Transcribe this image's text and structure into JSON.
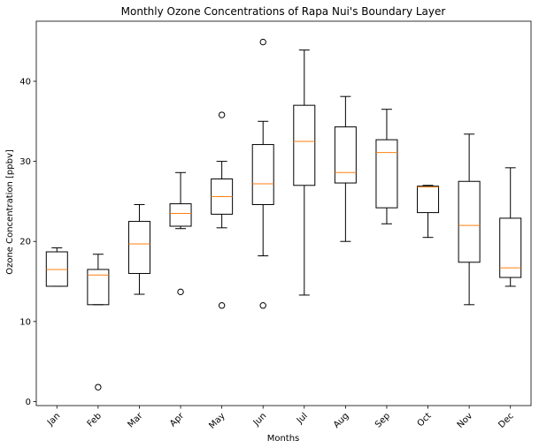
{
  "chart_data": {
    "type": "box",
    "title": "Monthly Ozone Concentrations of Rapa Nui's Boundary Layer",
    "xlabel": "Months",
    "ylabel": "Ozone Concentration [ppbv]",
    "ylim": [
      -0.5,
      47.5
    ],
    "yticks": [
      0,
      10,
      20,
      30,
      40
    ],
    "grid": false,
    "categories": [
      "Jan",
      "Feb",
      "Mar",
      "Apr",
      "May",
      "Jun",
      "Jul",
      "Aug",
      "Sep",
      "Oct",
      "Nov",
      "Dec"
    ],
    "boxes": [
      {
        "whisker_low": 14.4,
        "q1": 14.4,
        "median": 16.5,
        "q3": 18.7,
        "whisker_high": 19.2,
        "outliers": []
      },
      {
        "whisker_low": 12.1,
        "q1": 12.1,
        "median": 15.8,
        "q3": 16.5,
        "whisker_high": 18.4,
        "outliers": [
          1.8
        ]
      },
      {
        "whisker_low": 13.4,
        "q1": 16.0,
        "median": 19.7,
        "q3": 22.5,
        "whisker_high": 24.6,
        "outliers": []
      },
      {
        "whisker_low": 21.6,
        "q1": 21.9,
        "median": 23.5,
        "q3": 24.7,
        "whisker_high": 28.6,
        "outliers": [
          13.7
        ]
      },
      {
        "whisker_low": 21.7,
        "q1": 23.4,
        "median": 25.6,
        "q3": 27.8,
        "whisker_high": 30.0,
        "outliers": [
          35.8,
          12.0
        ]
      },
      {
        "whisker_low": 18.2,
        "q1": 24.6,
        "median": 27.2,
        "q3": 32.1,
        "whisker_high": 35.0,
        "outliers": [
          44.9,
          12.0
        ]
      },
      {
        "whisker_low": 13.3,
        "q1": 27.0,
        "median": 32.5,
        "q3": 37.0,
        "whisker_high": 43.9,
        "outliers": []
      },
      {
        "whisker_low": 20.0,
        "q1": 27.3,
        "median": 28.6,
        "q3": 34.3,
        "whisker_high": 38.1,
        "outliers": []
      },
      {
        "whisker_low": 22.2,
        "q1": 24.2,
        "median": 31.1,
        "q3": 32.7,
        "whisker_high": 36.5,
        "outliers": []
      },
      {
        "whisker_low": 20.5,
        "q1": 23.6,
        "median": 26.8,
        "q3": 26.9,
        "whisker_high": 27.0,
        "outliers": []
      },
      {
        "whisker_low": 12.1,
        "q1": 17.4,
        "median": 22.0,
        "q3": 27.5,
        "whisker_high": 33.4,
        "outliers": []
      },
      {
        "whisker_low": 14.4,
        "q1": 15.5,
        "median": 16.7,
        "q3": 22.9,
        "whisker_high": 29.2,
        "outliers": []
      }
    ],
    "colors": {
      "box": "#000000",
      "median": "#ff7f0e",
      "outlier_edge": "#000000"
    }
  }
}
